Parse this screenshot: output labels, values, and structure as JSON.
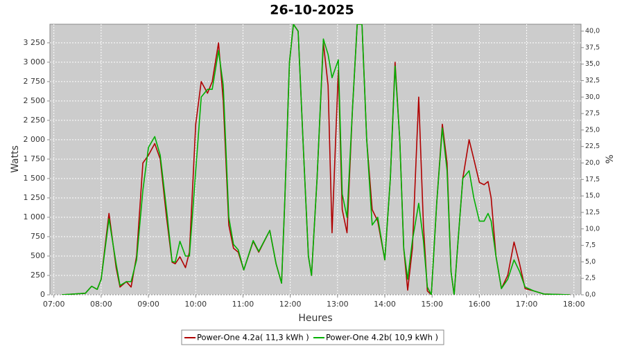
{
  "chart_data": {
    "type": "line",
    "title": "26-10-2025",
    "x_label": "Heures",
    "y_label": "Watts",
    "y2_label": "%",
    "grid": true,
    "legend": "bottom",
    "x": [
      "07:10",
      "07:40",
      "07:48",
      "07:55",
      "08:00",
      "08:10",
      "08:19",
      "08:24",
      "08:32",
      "08:38",
      "08:45",
      "08:53",
      "09:00",
      "09:08",
      "09:15",
      "09:23",
      "09:30",
      "09:34",
      "09:40",
      "09:47",
      "09:52",
      "10:00",
      "10:07",
      "10:15",
      "10:21",
      "10:29",
      "10:35",
      "10:42",
      "10:48",
      "10:54",
      "11:01",
      "11:13",
      "11:20",
      "11:34",
      "11:42",
      "11:49",
      "11:53",
      "11:59",
      "12:04",
      "12:10",
      "12:17",
      "12:23",
      "12:27",
      "12:34",
      "12:42",
      "12:48",
      "12:53",
      "13:01",
      "13:06",
      "13:12",
      "13:19",
      "13:25",
      "13:31",
      "13:37",
      "13:44",
      "13:51",
      "14:00",
      "14:07",
      "14:13",
      "14:19",
      "14:24",
      "14:29",
      "14:35",
      "14:43",
      "14:49",
      "14:54",
      "14:59",
      "15:06",
      "15:13",
      "15:19",
      "15:24",
      "15:28",
      "15:33",
      "15:39",
      "15:47",
      "15:53",
      "16:00",
      "16:06",
      "16:11",
      "16:15",
      "16:21",
      "16:28",
      "16:36",
      "16:44",
      "16:51",
      "16:58",
      "17:09",
      "17:22",
      "17:55"
    ],
    "xlim": [
      "06:55",
      "18:09"
    ],
    "xticks": [
      "07:00",
      "08:00",
      "09:00",
      "10:00",
      "11:00",
      "12:00",
      "13:00",
      "14:00",
      "15:00",
      "16:00",
      "17:00",
      "18:00"
    ],
    "ylim": [
      0,
      3490
    ],
    "yticks": [
      0,
      250,
      500,
      750,
      {
        "value": 1000,
        "label": "1 000"
      },
      {
        "value": 1250,
        "label": "1 250"
      },
      {
        "value": 1500,
        "label": "1 500"
      },
      {
        "value": 1750,
        "label": "1 750"
      },
      {
        "value": 2000,
        "label": "2 000"
      },
      {
        "value": 2250,
        "label": "2 250"
      },
      {
        "value": 2500,
        "label": "2 500"
      },
      {
        "value": 2750,
        "label": "2 750"
      },
      {
        "value": 3000,
        "label": "3 000"
      },
      {
        "value": 3250,
        "label": "3 250"
      }
    ],
    "y2lim": [
      0,
      41.05
    ],
    "y2ticks": [
      {
        "value": 0,
        "label": "0,0"
      },
      {
        "value": 2.5,
        "label": "2,5"
      },
      {
        "value": 5,
        "label": "5,0"
      },
      {
        "value": 7.5,
        "label": "7,5"
      },
      {
        "value": 10,
        "label": "10,0"
      },
      {
        "value": 12.5,
        "label": "12,5"
      },
      {
        "value": 15,
        "label": "15,0"
      },
      {
        "value": 17.5,
        "label": "17,5"
      },
      {
        "value": 20,
        "label": "20,0"
      },
      {
        "value": 22.5,
        "label": "22,5"
      },
      {
        "value": 25,
        "label": "25,0"
      },
      {
        "value": 27.5,
        "label": "27,5"
      },
      {
        "value": 30,
        "label": "30,0"
      },
      {
        "value": 32.5,
        "label": "32,5"
      },
      {
        "value": 35,
        "label": "35,0"
      },
      {
        "value": 37.5,
        "label": "37,5"
      },
      {
        "value": 40,
        "label": "40,0"
      }
    ],
    "series": [
      {
        "name": "Power-One 4.2a( 11,3 kWh )",
        "color": "#b00000",
        "values": [
          0,
          20,
          110,
          70,
          200,
          1050,
          350,
          100,
          170,
          100,
          500,
          1700,
          1800,
          1950,
          1750,
          1000,
          420,
          400,
          490,
          350,
          550,
          2200,
          2750,
          2600,
          2750,
          3250,
          2500,
          900,
          600,
          550,
          320,
          690,
          550,
          830,
          400,
          150,
          1200,
          3000,
          3490,
          3400,
          1800,
          500,
          250,
          1500,
          3250,
          2700,
          800,
          2900,
          1100,
          800,
          2400,
          3490,
          3490,
          2000,
          1100,
          950,
          450,
          1500,
          3000,
          2000,
          600,
          60,
          600,
          2550,
          900,
          50,
          0,
          1200,
          2200,
          1700,
          300,
          0,
          700,
          1500,
          2000,
          1750,
          1450,
          1420,
          1460,
          1250,
          500,
          80,
          250,
          680,
          400,
          80,
          50,
          10,
          0
        ]
      },
      {
        "name": "Power-One 4.2b( 10,9 kWh )",
        "color": "#00b000",
        "values": [
          0,
          20,
          110,
          70,
          200,
          980,
          400,
          120,
          170,
          170,
          450,
          1350,
          1900,
          2040,
          1800,
          1100,
          430,
          420,
          690,
          500,
          500,
          1600,
          2550,
          2650,
          2650,
          3150,
          2700,
          1000,
          650,
          580,
          320,
          700,
          560,
          830,
          400,
          150,
          1200,
          3000,
          3490,
          3400,
          1800,
          500,
          250,
          1500,
          3300,
          3100,
          2800,
          3030,
          1300,
          1000,
          2400,
          3490,
          3490,
          2000,
          900,
          1000,
          450,
          1500,
          2950,
          2000,
          600,
          200,
          700,
          1180,
          700,
          100,
          0,
          1200,
          2150,
          1600,
          300,
          0,
          700,
          1500,
          1600,
          1250,
          950,
          950,
          1050,
          950,
          500,
          80,
          200,
          450,
          300,
          100,
          50,
          10,
          0
        ]
      }
    ]
  }
}
